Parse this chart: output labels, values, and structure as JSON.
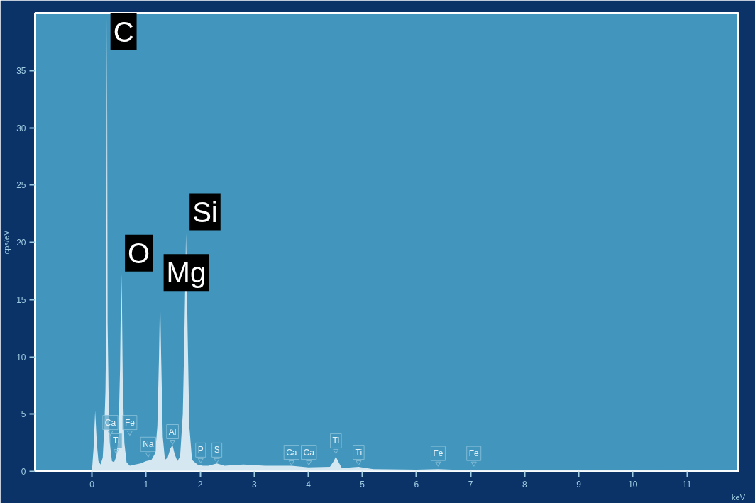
{
  "chart_data": {
    "type": "area",
    "xlabel": "keV",
    "ylabel": "cps/eV",
    "x": [
      0.0,
      0.03,
      0.06,
      0.09,
      0.12,
      0.16,
      0.2,
      0.23,
      0.25,
      0.265,
      0.272,
      0.277,
      0.283,
      0.29,
      0.31,
      0.33,
      0.37,
      0.41,
      0.45,
      0.49,
      0.52,
      0.535,
      0.545,
      0.555,
      0.57,
      0.6,
      0.64,
      0.7,
      0.8,
      0.9,
      1.0,
      1.1,
      1.17,
      1.21,
      1.24,
      1.26,
      1.28,
      1.31,
      1.35,
      1.4,
      1.45,
      1.49,
      1.53,
      1.58,
      1.63,
      1.68,
      1.71,
      1.74,
      1.77,
      1.8,
      1.85,
      1.95,
      2.05,
      2.15,
      2.31,
      2.45,
      2.8,
      3.2,
      3.69,
      4.0,
      4.4,
      4.47,
      4.51,
      4.55,
      4.62,
      4.93,
      5.2,
      6.0,
      6.4,
      7.0,
      8.0,
      9.0,
      10.0,
      11.0,
      11.9
    ],
    "series": [
      {
        "color": "#e6f1f7",
        "values": [
          0.0,
          2.0,
          5.3,
          2.5,
          0.9,
          0.6,
          1.2,
          4,
          7,
          13,
          30,
          39.8,
          30,
          13,
          6,
          2.5,
          0.9,
          0.8,
          1.3,
          3,
          9,
          15,
          17.2,
          15,
          8,
          2.5,
          0.8,
          0.5,
          0.6,
          0.7,
          0.9,
          1.0,
          1.6,
          4,
          10,
          15.5,
          10,
          3,
          1.0,
          1.2,
          2.0,
          2.3,
          1.5,
          0.9,
          1.3,
          5,
          12,
          20.8,
          12,
          4,
          1.0,
          0.6,
          0.5,
          0.5,
          0.7,
          0.5,
          0.6,
          0.5,
          0.5,
          0.35,
          0.4,
          0.9,
          1.3,
          0.9,
          0.3,
          0.4,
          0.2,
          0.15,
          0.2,
          0.1,
          0.1,
          0.1,
          0.08,
          0.06,
          0.05
        ]
      }
    ],
    "xlim": [
      -1.05,
      11.95
    ],
    "ylim": [
      0,
      40
    ],
    "xticks": [
      0,
      1,
      2,
      3,
      4,
      5,
      6,
      7,
      8,
      9,
      10,
      11
    ],
    "yticks": [
      0,
      5,
      10,
      15,
      20,
      25,
      30,
      35
    ],
    "grid": false,
    "annotations": [
      {
        "text": "C",
        "x": 0.277,
        "y": 36.5
      },
      {
        "text": "O",
        "x": 0.545,
        "y": 17.2
      },
      {
        "text": "Mg",
        "x": 1.26,
        "y": 15.5
      },
      {
        "text": "Si",
        "x": 1.74,
        "y": 20.8
      },
      {
        "text": "Ca",
        "x": 0.34,
        "y": 3.4
      },
      {
        "text": "Ti",
        "x": 0.45,
        "y": 1.8
      },
      {
        "text": "Fe",
        "x": 0.7,
        "y": 3.4
      },
      {
        "text": "Na",
        "x": 1.04,
        "y": 1.5
      },
      {
        "text": "Al",
        "x": 1.49,
        "y": 2.6
      },
      {
        "text": "P",
        "x": 2.01,
        "y": 1.0
      },
      {
        "text": "S",
        "x": 2.31,
        "y": 1.0
      },
      {
        "text": "Ca",
        "x": 3.69,
        "y": 0.8
      },
      {
        "text": "Ca",
        "x": 4.01,
        "y": 0.8
      },
      {
        "text": "Ti",
        "x": 4.51,
        "y": 1.8
      },
      {
        "text": "Ti",
        "x": 4.93,
        "y": 0.8
      },
      {
        "text": "Fe",
        "x": 6.4,
        "y": 0.7
      },
      {
        "text": "Fe",
        "x": 7.06,
        "y": 0.7
      }
    ]
  }
}
